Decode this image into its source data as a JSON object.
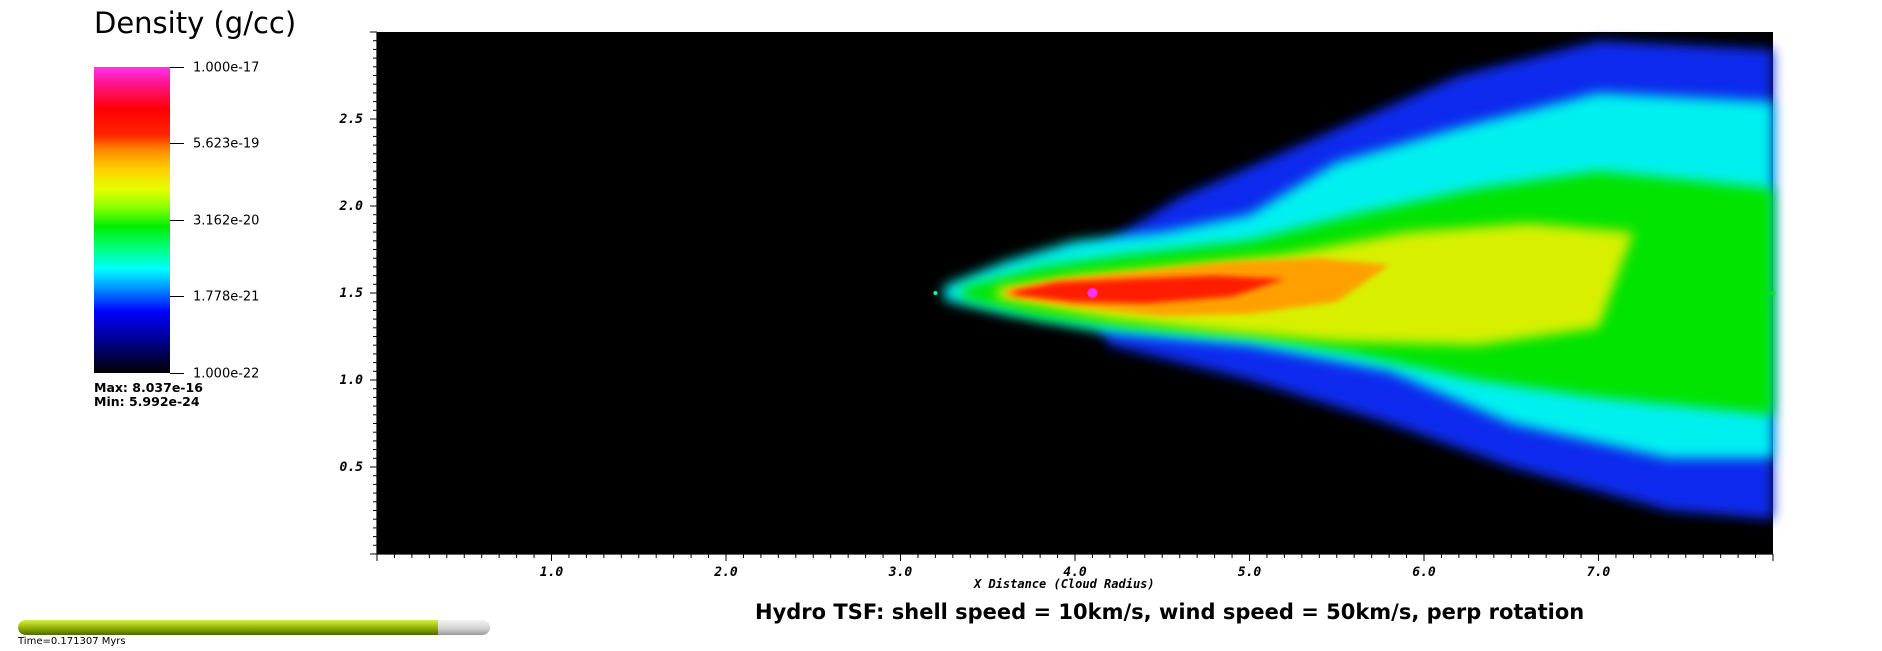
{
  "legend": {
    "title": "Density (g/cc)",
    "ticks": [
      "1.000e-17",
      "5.623e-19",
      "3.162e-20",
      "1.778e-21",
      "1.000e-22"
    ],
    "max_label": "Max:  8.037e-16",
    "min_label": "Min:  5.992e-24",
    "colormap": [
      "#000000",
      "#0000ff",
      "#00ffff",
      "#00ee00",
      "#ffee00",
      "#ff0000",
      "#ff33ee"
    ]
  },
  "chart_data": {
    "type": "heatmap",
    "title": "",
    "subtitle": "Hydro TSF: shell speed = 10km/s, wind speed = 50km/s, perp rotation",
    "xlabel": "X Distance (Cloud Radius)",
    "ylabel": "",
    "xlim": [
      0.0,
      8.0
    ],
    "ylim": [
      0.0,
      3.0
    ],
    "x_ticks": [
      "1.0",
      "2.0",
      "3.0",
      "4.0",
      "5.0",
      "6.0",
      "7.0"
    ],
    "y_ticks": [
      "0.5",
      "1.0",
      "1.5",
      "2.0",
      "2.5"
    ],
    "background_color": "#000000",
    "features": [
      {
        "name": "peak",
        "x": 4.1,
        "y": 1.5,
        "color": "#ff33ee"
      },
      {
        "name": "dense core",
        "x": 3.9,
        "y": 1.5,
        "color": "#ff1a00"
      },
      {
        "name": "tail head",
        "x": 3.2,
        "y": 1.5,
        "color": "#00ffaa"
      },
      {
        "name": "tail end",
        "x": 8.0,
        "y": 1.5,
        "color": "#00ee00"
      }
    ]
  },
  "time": {
    "label": "Time=0.171307 Myrs",
    "progress": 0.89
  }
}
